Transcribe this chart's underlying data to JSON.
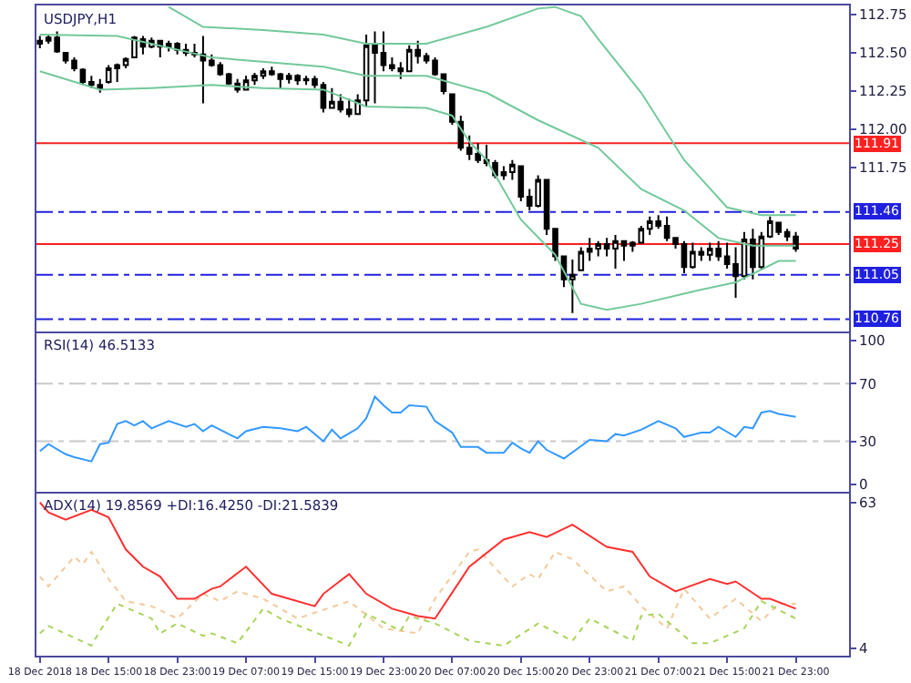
{
  "chart_data": [
    {
      "type": "candlestick",
      "title": "USDJPY,H1",
      "color": "#000000",
      "tick_labels": "y",
      "x": [
        "2018-12-18T07:00",
        "2018-12-18T08:00",
        "2018-12-18T09:00",
        "2018-12-18T10:00",
        "2018-12-18T11:00",
        "2018-12-18T12:00",
        "2018-12-18T13:00",
        "2018-12-18T14:00",
        "2018-12-18T15:00",
        "2018-12-18T16:00",
        "2018-12-18T17:00",
        "2018-12-18T18:00",
        "2018-12-18T19:00",
        "2018-12-18T20:00",
        "2018-12-18T21:00",
        "2018-12-18T22:00",
        "2018-12-18T23:00",
        "2018-12-19T00:00",
        "2018-12-19T01:00",
        "2018-12-19T02:00",
        "2018-12-19T03:00",
        "2018-12-19T04:00",
        "2018-12-19T05:00",
        "2018-12-19T06:00",
        "2018-12-19T07:00",
        "2018-12-19T08:00",
        "2018-12-19T09:00",
        "2018-12-19T10:00",
        "2018-12-19T11:00",
        "2018-12-19T12:00",
        "2018-12-19T13:00",
        "2018-12-19T14:00",
        "2018-12-19T15:00",
        "2018-12-19T16:00",
        "2018-12-19T17:00",
        "2018-12-19T18:00",
        "2018-12-19T19:00",
        "2018-12-19T20:00",
        "2018-12-19T21:00",
        "2018-12-19T22:00",
        "2018-12-19T23:00",
        "2018-12-20T00:00",
        "2018-12-20T01:00",
        "2018-12-20T02:00",
        "2018-12-20T03:00",
        "2018-12-20T04:00",
        "2018-12-20T05:00",
        "2018-12-20T06:00",
        "2018-12-20T07:00",
        "2018-12-20T08:00",
        "2018-12-20T09:00",
        "2018-12-20T10:00",
        "2018-12-20T11:00",
        "2018-12-20T12:00",
        "2018-12-20T13:00",
        "2018-12-20T14:00",
        "2018-12-20T15:00",
        "2018-12-20T16:00",
        "2018-12-20T17:00",
        "2018-12-20T18:00",
        "2018-12-20T19:00",
        "2018-12-20T20:00",
        "2018-12-20T21:00",
        "2018-12-20T22:00",
        "2018-12-20T23:00",
        "2018-12-21T00:00",
        "2018-12-21T01:00",
        "2018-12-21T02:00",
        "2018-12-21T03:00",
        "2018-12-21T04:00",
        "2018-12-21T05:00",
        "2018-12-21T06:00",
        "2018-12-21T07:00",
        "2018-12-21T08:00",
        "2018-12-21T09:00",
        "2018-12-21T10:00",
        "2018-12-21T11:00",
        "2018-12-21T12:00",
        "2018-12-21T13:00",
        "2018-12-21T14:00",
        "2018-12-21T15:00",
        "2018-12-21T16:00",
        "2018-12-21T17:00",
        "2018-12-21T18:00",
        "2018-12-21T19:00",
        "2018-12-21T20:00",
        "2018-12-21T21:00",
        "2018-12-21T22:00",
        "2018-12-21T23:00"
      ],
      "ohlc": [
        [
          112.56,
          112.61,
          112.53,
          112.58
        ],
        [
          112.58,
          112.62,
          112.56,
          112.6
        ],
        [
          112.6,
          112.64,
          112.5,
          112.51
        ],
        [
          112.5,
          112.5,
          112.43,
          112.45
        ],
        [
          112.45,
          112.47,
          112.38,
          112.4
        ],
        [
          112.39,
          112.4,
          112.29,
          112.31
        ],
        [
          112.31,
          112.35,
          112.27,
          112.29
        ],
        [
          112.29,
          112.33,
          112.24,
          112.27
        ],
        [
          112.31,
          112.42,
          112.3,
          112.4
        ],
        [
          112.4,
          112.43,
          112.31,
          112.42
        ],
        [
          112.42,
          112.47,
          112.4,
          112.46
        ],
        [
          112.47,
          112.61,
          112.47,
          112.6
        ],
        [
          112.59,
          112.61,
          112.49,
          112.54
        ],
        [
          112.54,
          112.6,
          112.53,
          112.58
        ],
        [
          112.58,
          112.58,
          112.47,
          112.54
        ],
        [
          112.54,
          112.58,
          112.51,
          112.56
        ],
        [
          112.56,
          112.57,
          112.49,
          112.52
        ],
        [
          112.52,
          112.56,
          112.48,
          112.5
        ],
        [
          112.5,
          112.56,
          112.47,
          112.49
        ],
        [
          112.49,
          112.61,
          112.17,
          112.45
        ],
        [
          112.45,
          112.49,
          112.41,
          112.42
        ],
        [
          112.42,
          112.44,
          112.35,
          112.36
        ],
        [
          112.36,
          112.37,
          112.29,
          112.3
        ],
        [
          112.3,
          112.33,
          112.24,
          112.26
        ],
        [
          112.26,
          112.35,
          112.26,
          112.32
        ],
        [
          112.32,
          112.37,
          112.29,
          112.35
        ],
        [
          112.35,
          112.4,
          112.33,
          112.38
        ],
        [
          112.38,
          112.41,
          112.35,
          112.36
        ],
        [
          112.36,
          112.37,
          112.27,
          112.33
        ],
        [
          112.33,
          112.37,
          112.3,
          112.35
        ],
        [
          112.35,
          112.36,
          112.29,
          112.32
        ],
        [
          112.32,
          112.35,
          112.29,
          112.33
        ],
        [
          112.33,
          112.35,
          112.27,
          112.29
        ],
        [
          112.29,
          112.31,
          112.11,
          112.14
        ],
        [
          112.14,
          112.27,
          112.14,
          112.18
        ],
        [
          112.18,
          112.23,
          112.11,
          112.13
        ],
        [
          112.13,
          112.2,
          112.08,
          112.1
        ],
        [
          112.1,
          112.23,
          112.1,
          112.19
        ],
        [
          112.19,
          112.62,
          112.15,
          112.55
        ],
        [
          112.55,
          112.64,
          112.17,
          112.5
        ],
        [
          112.5,
          112.64,
          112.38,
          112.42
        ],
        [
          112.42,
          112.47,
          112.38,
          112.4
        ],
        [
          112.4,
          112.44,
          112.33,
          112.38
        ],
        [
          112.38,
          112.55,
          112.38,
          112.52
        ],
        [
          112.52,
          112.58,
          112.43,
          112.48
        ],
        [
          112.48,
          112.5,
          112.43,
          112.45
        ],
        [
          112.45,
          112.47,
          112.35,
          112.36
        ],
        [
          112.36,
          112.36,
          112.23,
          112.25
        ],
        [
          112.23,
          112.23,
          112.03,
          112.05
        ],
        [
          112.05,
          112.09,
          111.86,
          111.88
        ],
        [
          111.88,
          111.96,
          111.8,
          111.84
        ],
        [
          111.84,
          111.91,
          111.78,
          111.8
        ],
        [
          111.8,
          111.9,
          111.76,
          111.78
        ],
        [
          111.78,
          111.8,
          111.68,
          111.7
        ],
        [
          111.7,
          111.76,
          111.67,
          111.72
        ],
        [
          111.72,
          111.8,
          111.67,
          111.77
        ],
        [
          111.76,
          111.76,
          111.53,
          111.56
        ],
        [
          111.56,
          111.61,
          111.47,
          111.5
        ],
        [
          111.5,
          111.7,
          111.49,
          111.67
        ],
        [
          111.67,
          111.67,
          111.31,
          111.35
        ],
        [
          111.35,
          111.35,
          111.14,
          111.17
        ],
        [
          111.17,
          111.17,
          110.97,
          111.02
        ],
        [
          111.02,
          111.15,
          110.8,
          111.05
        ],
        [
          111.08,
          111.23,
          111.08,
          111.2
        ],
        [
          111.2,
          111.29,
          111.14,
          111.22
        ],
        [
          111.22,
          111.27,
          111.17,
          111.25
        ],
        [
          111.25,
          111.29,
          111.17,
          111.22
        ],
        [
          111.22,
          111.31,
          111.09,
          111.27
        ],
        [
          111.27,
          111.27,
          111.14,
          111.24
        ],
        [
          111.24,
          111.27,
          111.2,
          111.26
        ],
        [
          111.26,
          111.37,
          111.26,
          111.35
        ],
        [
          111.35,
          111.43,
          111.31,
          111.4
        ],
        [
          111.4,
          111.44,
          111.35,
          111.37
        ],
        [
          111.37,
          111.43,
          111.27,
          111.29
        ],
        [
          111.29,
          111.29,
          111.22,
          111.25
        ],
        [
          111.25,
          111.27,
          111.06,
          111.1
        ],
        [
          111.1,
          111.26,
          111.09,
          111.2
        ],
        [
          111.2,
          111.23,
          111.14,
          111.18
        ],
        [
          111.18,
          111.26,
          111.14,
          111.22
        ],
        [
          111.22,
          111.27,
          111.14,
          111.17
        ],
        [
          111.17,
          111.26,
          111.09,
          111.12
        ],
        [
          111.12,
          111.23,
          110.9,
          111.04
        ],
        [
          111.04,
          111.33,
          111.02,
          111.28
        ],
        [
          111.28,
          111.35,
          111.02,
          111.1
        ],
        [
          111.1,
          111.33,
          111.09,
          111.3
        ],
        [
          111.3,
          111.43,
          111.29,
          111.4
        ],
        [
          111.39,
          111.39,
          111.31,
          111.33
        ],
        [
          111.33,
          111.35,
          111.27,
          111.3
        ],
        [
          111.3,
          111.33,
          111.2,
          111.22
        ]
      ],
      "series": [
        {
          "type": "line",
          "color": "#72c99a",
          "x": [
            "2018-12-18T22:00",
            "2018-12-19T02:00",
            "2018-12-19T09:00",
            "2018-12-19T16:00",
            "2018-12-19T21:00",
            "2018-12-20T04:00",
            "2018-12-20T11:00",
            "2018-12-20T17:00",
            "2018-12-20T19:00",
            "2018-12-20T22:00",
            "2018-12-21T00:00",
            "2018-12-21T05:00",
            "2018-12-21T10:00",
            "2018-12-21T15:00",
            "2018-12-21T19:00",
            "2018-12-21T23:00"
          ],
          "values": [
            112.8,
            112.67,
            112.65,
            112.62,
            112.56,
            112.56,
            112.67,
            112.79,
            112.8,
            112.74,
            112.59,
            112.24,
            111.8,
            111.49,
            111.44,
            111.44
          ]
        },
        {
          "type": "line",
          "color": "#72c99a",
          "x": [
            "2018-12-18T07:00",
            "2018-12-18T16:00",
            "2018-12-19T03:00",
            "2018-12-19T16:00",
            "2018-12-19T21:00",
            "2018-12-20T04:00",
            "2018-12-20T11:00",
            "2018-12-20T17:00",
            "2018-12-21T00:00",
            "2018-12-21T05:00",
            "2018-12-21T10:00",
            "2018-12-21T14:00",
            "2018-12-21T18:00",
            "2018-12-21T23:00"
          ],
          "values": [
            112.62,
            112.61,
            112.47,
            112.41,
            112.35,
            112.35,
            112.24,
            112.06,
            111.88,
            111.61,
            111.47,
            111.29,
            111.24,
            111.24
          ]
        },
        {
          "type": "line",
          "color": "#72c99a",
          "x": [
            "2018-12-18T07:00",
            "2018-12-18T14:00",
            "2018-12-18T20:00",
            "2018-12-19T03:00",
            "2018-12-19T09:00",
            "2018-12-19T16:00",
            "2018-12-19T21:00",
            "2018-12-20T04:00",
            "2018-12-20T07:00",
            "2018-12-20T09:00",
            "2018-12-20T11:00",
            "2018-12-20T15:00",
            "2018-12-20T19:00",
            "2018-12-20T22:00",
            "2018-12-21T01:00",
            "2018-12-21T05:00",
            "2018-12-21T11:00",
            "2018-12-21T16:00",
            "2018-12-21T21:00",
            "2018-12-21T23:00"
          ],
          "values": [
            112.38,
            112.26,
            112.27,
            112.29,
            112.27,
            112.26,
            112.15,
            112.14,
            112.09,
            111.92,
            111.8,
            111.41,
            111.18,
            110.86,
            110.82,
            110.86,
            110.94,
            111.0,
            111.14,
            111.14
          ]
        }
      ],
      "ref_lines": [
        {
          "axis": "y",
          "value": 111.91,
          "label": "111.91",
          "color": "#ff2020",
          "line_style": "solid"
        },
        {
          "axis": "y",
          "value": 111.46,
          "label": "111.46",
          "color": "#2020e0",
          "line_style": "dashed"
        },
        {
          "axis": "y",
          "value": 111.25,
          "label": "111.25",
          "color": "#ff2020",
          "line_style": "solid"
        },
        {
          "axis": "y",
          "value": 111.05,
          "label": "111.05",
          "color": "#2020e0",
          "line_style": "dashed"
        },
        {
          "axis": "y",
          "value": 110.76,
          "label": "110.76",
          "color": "#2020e0",
          "line_style": "dashed"
        }
      ],
      "xlim": [
        "2018-12-18T06:36",
        "2018-12-22T05:12"
      ],
      "ylim": [
        110.68,
        112.81
      ],
      "yticks": [
        111.75,
        {
          "value": 112.0,
          "label": "112.00"
        },
        112.25,
        {
          "value": 112.5,
          "label": "112.50"
        },
        112.75
      ]
    },
    {
      "type": "line",
      "title": "RSI(14) 46.5133",
      "tick_labels": "y",
      "series": [
        {
          "color": "#3399ff",
          "x": [
            "2018-12-18T07:00",
            "2018-12-18T08:00",
            "2018-12-18T10:00",
            "2018-12-18T11:00",
            "2018-12-18T13:00",
            "2018-12-18T14:00",
            "2018-12-18T15:00",
            "2018-12-18T16:00",
            "2018-12-18T17:00",
            "2018-12-18T18:00",
            "2018-12-18T19:00",
            "2018-12-18T20:00",
            "2018-12-18T22:00",
            "2018-12-19T00:00",
            "2018-12-19T01:00",
            "2018-12-19T02:00",
            "2018-12-19T03:00",
            "2018-12-19T06:00",
            "2018-12-19T07:00",
            "2018-12-19T09:00",
            "2018-12-19T11:00",
            "2018-12-19T13:00",
            "2018-12-19T14:00",
            "2018-12-19T16:00",
            "2018-12-19T17:00",
            "2018-12-19T18:00",
            "2018-12-19T20:00",
            "2018-12-19T21:00",
            "2018-12-19T22:00",
            "2018-12-19T23:00",
            "2018-12-20T00:00",
            "2018-12-20T01:00",
            "2018-12-20T02:00",
            "2018-12-20T04:00",
            "2018-12-20T05:00",
            "2018-12-20T07:00",
            "2018-12-20T08:00",
            "2018-12-20T10:00",
            "2018-12-20T11:00",
            "2018-12-20T13:00",
            "2018-12-20T14:00",
            "2018-12-20T15:00",
            "2018-12-20T16:00",
            "2018-12-20T17:00",
            "2018-12-20T18:00",
            "2018-12-20T20:00",
            "2018-12-20T23:00",
            "2018-12-21T01:00",
            "2018-12-21T02:00",
            "2018-12-21T03:00",
            "2018-12-21T05:00",
            "2018-12-21T07:00",
            "2018-12-21T09:00",
            "2018-12-21T10:00",
            "2018-12-21T12:00",
            "2018-12-21T13:00",
            "2018-12-21T14:00",
            "2018-12-21T16:00",
            "2018-12-21T17:00",
            "2018-12-21T18:00",
            "2018-12-21T19:00",
            "2018-12-21T20:00",
            "2018-12-21T21:00",
            "2018-12-21T23:00"
          ],
          "values": [
            23,
            28,
            21,
            19,
            16,
            28,
            29,
            42,
            44,
            41,
            44,
            39,
            44,
            40,
            42,
            37,
            41,
            32,
            37,
            40,
            39,
            37,
            40,
            30,
            38,
            32,
            39,
            46,
            61,
            55,
            50,
            50,
            55,
            54,
            44,
            36,
            26,
            26,
            22,
            22,
            29,
            25,
            22,
            30,
            24,
            18,
            31,
            30,
            35,
            34,
            38,
            44,
            39,
            33,
            36,
            36,
            40,
            33,
            40,
            39,
            50,
            51,
            49,
            47
          ]
        }
      ],
      "ref_lines": [
        {
          "axis": "y",
          "value": 70,
          "color": "#c8c8c8",
          "line_style": "dashed"
        },
        {
          "axis": "y",
          "value": 30,
          "color": "#c8c8c8",
          "line_style": "dashed"
        }
      ],
      "xlim": [
        "2018-12-18T06:36",
        "2018-12-22T05:12"
      ],
      "ylim": [
        -5,
        105
      ],
      "yticks": [
        0,
        30,
        70,
        100
      ]
    },
    {
      "type": "line",
      "title": "ADX(14) 19.8569 +DI:16.4250 -DI:21.5839",
      "series": [
        {
          "color": "#f5c89a",
          "line_style": "dotted",
          "x": [
            "2018-12-18T07:00",
            "2018-12-18T08:00",
            "2018-12-18T11:00",
            "2018-12-18T12:00",
            "2018-12-18T13:00",
            "2018-12-18T15:00",
            "2018-12-18T17:00",
            "2018-12-18T20:00",
            "2018-12-18T23:00",
            "2018-12-19T02:00",
            "2018-12-19T04:00",
            "2018-12-19T06:00",
            "2018-12-19T09:00",
            "2018-12-19T13:00",
            "2018-12-19T19:00",
            "2018-12-19T23:00",
            "2018-12-20T03:00",
            "2018-12-20T05:00",
            "2018-12-20T09:00",
            "2018-12-20T10:00",
            "2018-12-20T14:00",
            "2018-12-20T16:00",
            "2018-12-20T17:00",
            "2018-12-20T19:00",
            "2018-12-20T21:00",
            "2018-12-21T01:00",
            "2018-12-21T03:00",
            "2018-12-21T05:00",
            "2018-12-21T08:00",
            "2018-12-21T10:00",
            "2018-12-21T13:00",
            "2018-12-21T16:00",
            "2018-12-21T19:00",
            "2018-12-21T21:00",
            "2018-12-21T23:00"
          ],
          "values": [
            33,
            29,
            41,
            38,
            43,
            32,
            23,
            21,
            16,
            26,
            23,
            27,
            24,
            16,
            23,
            12,
            10,
            24,
            43,
            44,
            29,
            34,
            32,
            43,
            40,
            27,
            29,
            21,
            12,
            28,
            16,
            24,
            15,
            22,
            22
          ]
        },
        {
          "color": "#a8d45a",
          "line_style": "dotted",
          "x": [
            "2018-12-18T07:00",
            "2018-12-18T08:00",
            "2018-12-18T13:00",
            "2018-12-18T14:00",
            "2018-12-18T16:00",
            "2018-12-18T20:00",
            "2018-12-18T21:00",
            "2018-12-18T23:00",
            "2018-12-19T02:00",
            "2018-12-19T03:00",
            "2018-12-19T06:00",
            "2018-12-19T09:00",
            "2018-12-19T11:00",
            "2018-12-19T19:00",
            "2018-12-19T21:00",
            "2018-12-20T01:00",
            "2018-12-20T02:00",
            "2018-12-20T05:00",
            "2018-12-20T09:00",
            "2018-12-20T13:00",
            "2018-12-20T17:00",
            "2018-12-20T21:00",
            "2018-12-20T23:00",
            "2018-12-21T04:00",
            "2018-12-21T05:00",
            "2018-12-21T07:00",
            "2018-12-21T11:00",
            "2018-12-21T13:00",
            "2018-12-21T17:00",
            "2018-12-21T19:00",
            "2018-12-21T23:00"
          ],
          "values": [
            10,
            13,
            5,
            11,
            22,
            16,
            10,
            14,
            9,
            10,
            6,
            20,
            16,
            5,
            18,
            11,
            17,
            14,
            7,
            5,
            14,
            7,
            16,
            7,
            17,
            18,
            6,
            6,
            12,
            23,
            16
          ]
        },
        {
          "color": "#ff3030",
          "line_style": "solid",
          "x": [
            "2018-12-18T07:00",
            "2018-12-18T08:00",
            "2018-12-18T10:00",
            "2018-12-18T13:00",
            "2018-12-18T15:00",
            "2018-12-18T17:00",
            "2018-12-18T19:00",
            "2018-12-18T21:00",
            "2018-12-18T23:00",
            "2018-12-19T01:00",
            "2018-12-19T03:00",
            "2018-12-19T04:00",
            "2018-12-19T07:00",
            "2018-12-19T10:00",
            "2018-12-19T15:00",
            "2018-12-19T16:00",
            "2018-12-19T19:00",
            "2018-12-19T21:00",
            "2018-12-20T00:00",
            "2018-12-20T02:00",
            "2018-12-20T03:00",
            "2018-12-20T05:00",
            "2018-12-20T09:00",
            "2018-12-20T13:00",
            "2018-12-20T16:00",
            "2018-12-20T18:00",
            "2018-12-20T21:00",
            "2018-12-21T01:00",
            "2018-12-21T04:00",
            "2018-12-21T06:00",
            "2018-12-21T09:00",
            "2018-12-21T13:00",
            "2018-12-21T15:00",
            "2018-12-21T16:00",
            "2018-12-21T19:00",
            "2018-12-21T20:00",
            "2018-12-21T23:00"
          ],
          "values": [
            63,
            59,
            56,
            60,
            57,
            44,
            37,
            33,
            24,
            24,
            28,
            29,
            37,
            26,
            21,
            26,
            34,
            26,
            20,
            18,
            17,
            16,
            37,
            48,
            51,
            49,
            54,
            45,
            43,
            33,
            27,
            32,
            30,
            31,
            24,
            24,
            20
          ]
        }
      ],
      "xlim": [
        "2018-12-18T06:36",
        "2018-12-22T05:12"
      ],
      "ylim": [
        1,
        66.6
      ],
      "yticks": [
        4,
        63
      ],
      "xticks": [
        {
          "value": "2018-12-18T07:00",
          "label": "18 Dec 2018"
        },
        {
          "value": "2018-12-18T15:00",
          "label": "18 Dec 15:00"
        },
        {
          "value": "2018-12-18T23:00",
          "label": "18 Dec 23:00"
        },
        {
          "value": "2018-12-19T07:00",
          "label": "19 Dec 07:00"
        },
        {
          "value": "2018-12-19T15:00",
          "label": "19 Dec 15:00"
        },
        {
          "value": "2018-12-19T23:00",
          "label": "19 Dec 23:00"
        },
        {
          "value": "2018-12-20T07:00",
          "label": "20 Dec 07:00"
        },
        {
          "value": "2018-12-20T15:00",
          "label": "20 Dec 15:00"
        },
        {
          "value": "2018-12-20T23:00",
          "label": "20 Dec 23:00"
        },
        {
          "value": "2018-12-21T07:00",
          "label": "21 Dec 07:00"
        },
        {
          "value": "2018-12-21T15:00",
          "label": "21 Dec 15:00"
        },
        {
          "value": "2018-12-21T23:00",
          "label": "21 Dec 23:00"
        }
      ]
    }
  ]
}
